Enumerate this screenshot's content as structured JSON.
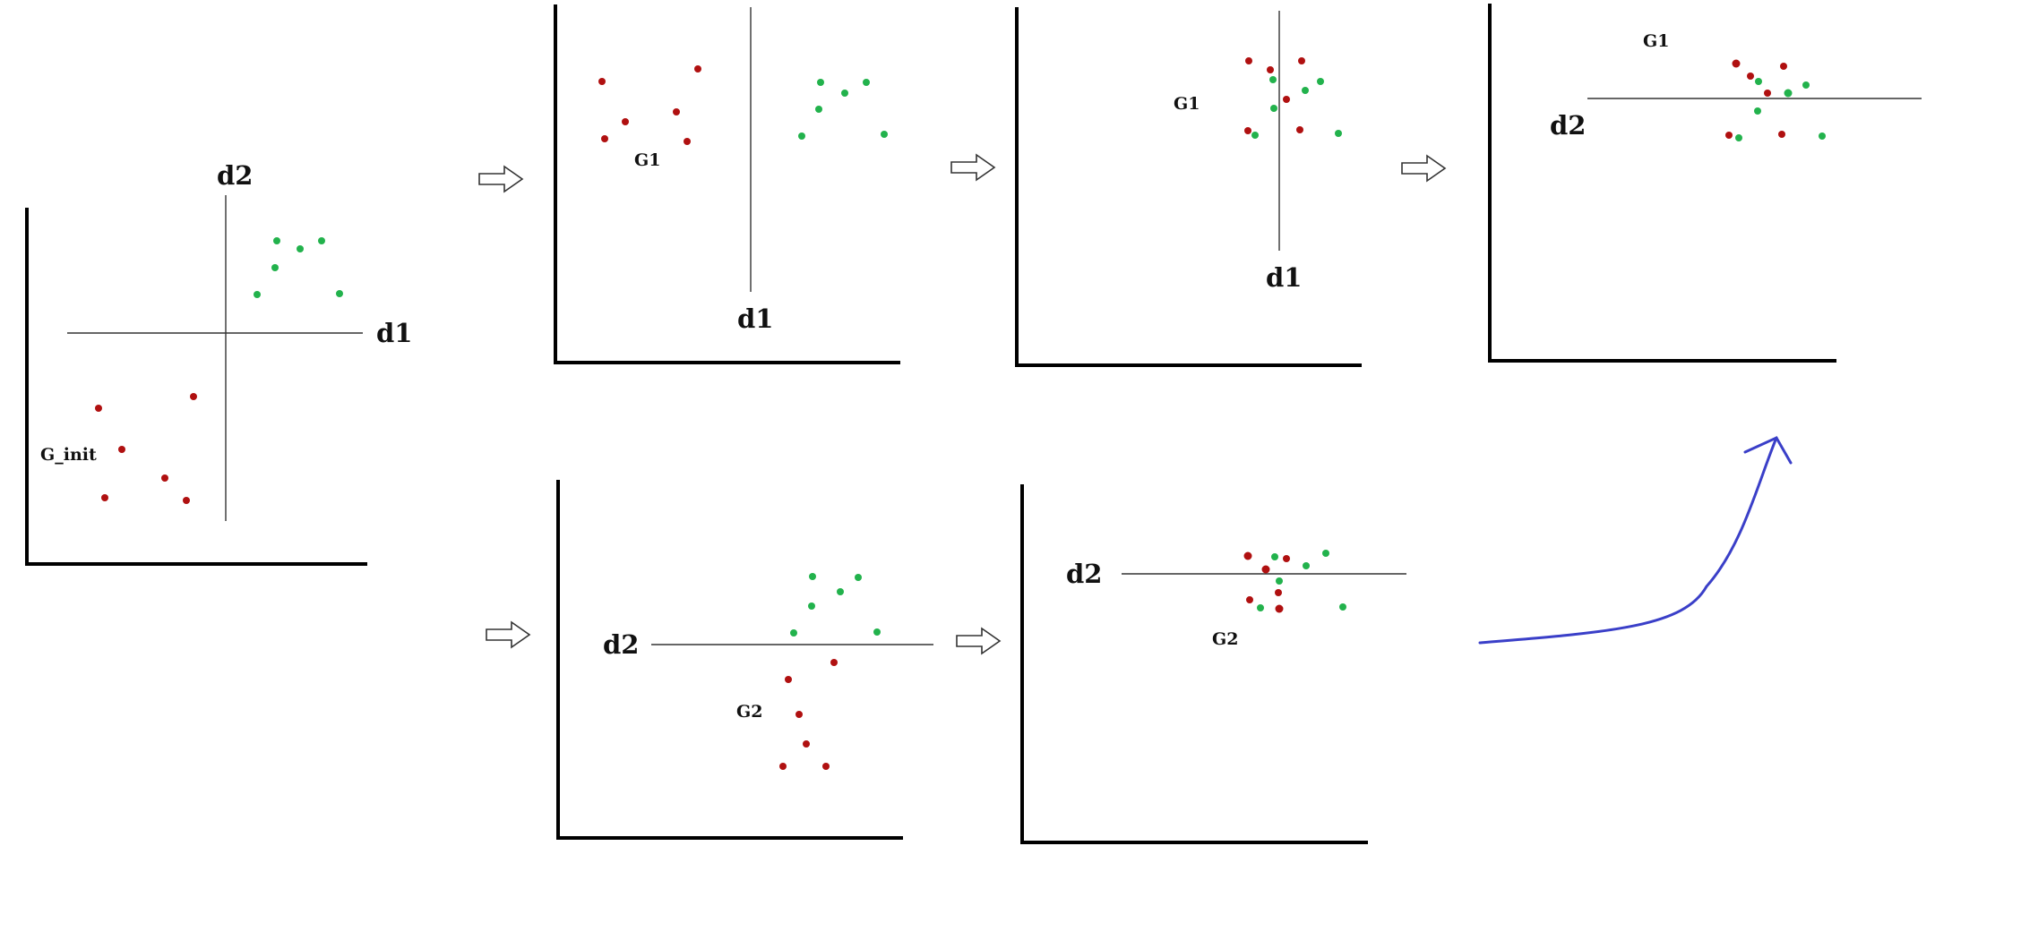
{
  "colors": {
    "background": "#ffffff",
    "frame": "#000000",
    "divider": "#333333",
    "class_a": "#b01010",
    "class_b": "#22b24c",
    "arrow_outline": "#333333",
    "curve": "#3a3fc8"
  },
  "panels": [
    {
      "id": "panel-initial",
      "axis_labels": {
        "d1": "d1",
        "d2": "d2"
      },
      "group_label": "G_init"
    },
    {
      "id": "panel-top-2",
      "axis_labels": {
        "d1": "d1"
      },
      "group_label": "G1"
    },
    {
      "id": "panel-top-3",
      "axis_labels": {
        "d1": "d1"
      },
      "group_label": "G1"
    },
    {
      "id": "panel-top-4",
      "axis_labels": {
        "d2": "d2"
      },
      "group_label": "G1"
    },
    {
      "id": "panel-bottom-2",
      "axis_labels": {
        "d2": "d2"
      },
      "group_label": "G2"
    },
    {
      "id": "panel-bottom-3",
      "axis_labels": {
        "d2": "d2"
      },
      "group_label": "G2"
    }
  ],
  "transition_arrows": [
    "hollow-arrow",
    "hollow-arrow",
    "hollow-arrow",
    "hollow-arrow",
    "hollow-arrow"
  ],
  "merge_arrow": "curved-arrow"
}
